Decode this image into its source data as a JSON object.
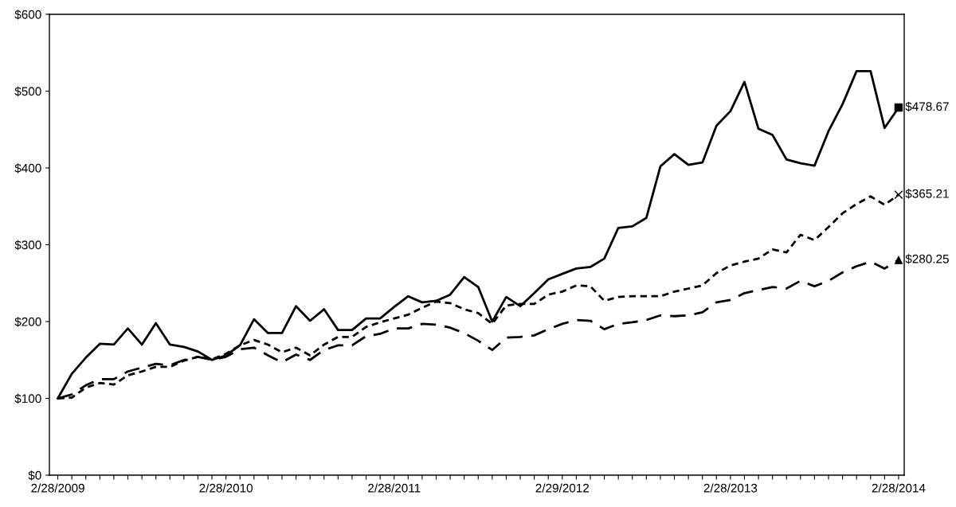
{
  "chart_data": {
    "type": "line",
    "categories": [
      "2/28/2009",
      null,
      null,
      null,
      null,
      null,
      null,
      null,
      null,
      null,
      null,
      null,
      "2/28/2010",
      null,
      null,
      null,
      null,
      null,
      null,
      null,
      null,
      null,
      null,
      null,
      "2/28/2011",
      null,
      null,
      null,
      null,
      null,
      null,
      null,
      null,
      null,
      null,
      null,
      "2/29/2012",
      null,
      null,
      null,
      null,
      null,
      null,
      null,
      null,
      null,
      null,
      null,
      "2/28/2013",
      null,
      null,
      null,
      null,
      null,
      null,
      null,
      null,
      null,
      null,
      null,
      "2/28/2014"
    ],
    "series": [
      {
        "color": "#000000",
        "line_style": "solid",
        "values": [
          100,
          132,
          153,
          171,
          170,
          191,
          170,
          198,
          170,
          167,
          161,
          150,
          156,
          169,
          203,
          185,
          185,
          220,
          201,
          216,
          189,
          189,
          204,
          204,
          219,
          233,
          225,
          227,
          235,
          258,
          245,
          200,
          232,
          220,
          237,
          255,
          262,
          269,
          271,
          282,
          322,
          324,
          335,
          402,
          418,
          404,
          407,
          455,
          474,
          512,
          451,
          443,
          411,
          406,
          403,
          448,
          483,
          526,
          526,
          452,
          478.67
        ]
      },
      {
        "color": "#000000",
        "line_style": "dotted",
        "values": [
          100,
          101,
          114,
          120,
          118,
          130,
          135,
          141,
          141,
          149,
          154,
          151,
          158,
          169,
          176,
          170,
          160,
          166,
          156,
          170,
          180,
          180,
          193,
          199,
          204,
          209,
          218,
          226,
          224,
          216,
          211,
          197,
          221,
          223,
          223,
          235,
          239,
          247,
          246,
          227,
          232,
          233,
          233,
          233,
          239,
          243,
          247,
          263,
          273,
          278,
          282,
          294,
          290,
          313,
          306,
          323,
          341,
          353,
          363,
          352,
          365.21
        ]
      },
      {
        "color": "#000000",
        "line_style": "dashed",
        "values": [
          100,
          105,
          117,
          125,
          125,
          135,
          140,
          145,
          143,
          150,
          154,
          150,
          154,
          164,
          166,
          156,
          147,
          157,
          150,
          163,
          169,
          169,
          181,
          184,
          191,
          191,
          197,
          196,
          192,
          185,
          175,
          163,
          179,
          180,
          182,
          190,
          197,
          202,
          201,
          190,
          197,
          199,
          202,
          208,
          207,
          208,
          212,
          225,
          228,
          237,
          241,
          245,
          243,
          253,
          246,
          253,
          264,
          272,
          278,
          269,
          280.25
        ]
      },
      {
        "type": "scatter",
        "color": "#000000",
        "marker": "square",
        "x": [
          "2/28/2014"
        ],
        "values": [
          478.67
        ],
        "value_labels": [
          "$478.67"
        ]
      },
      {
        "type": "scatter",
        "color": "#000000",
        "marker": "cross",
        "x": [
          "2/28/2014"
        ],
        "values": [
          365.21
        ],
        "value_labels": [
          "$365.21"
        ]
      },
      {
        "type": "scatter",
        "color": "#000000",
        "marker": "triangle",
        "x": [
          "2/28/2014"
        ],
        "values": [
          280.25
        ],
        "value_labels": [
          "$280.25"
        ]
      }
    ],
    "ylim": [
      0,
      600
    ],
    "yticks": [
      {
        "value": 0,
        "label": "$0"
      },
      {
        "value": 100,
        "label": "$100"
      },
      {
        "value": 200,
        "label": "$200"
      },
      {
        "value": 300,
        "label": "$300"
      },
      {
        "value": 400,
        "label": "$400"
      },
      {
        "value": 500,
        "label": "$500"
      },
      {
        "value": 600,
        "label": "$600"
      }
    ],
    "grid": false,
    "legend": false
  }
}
